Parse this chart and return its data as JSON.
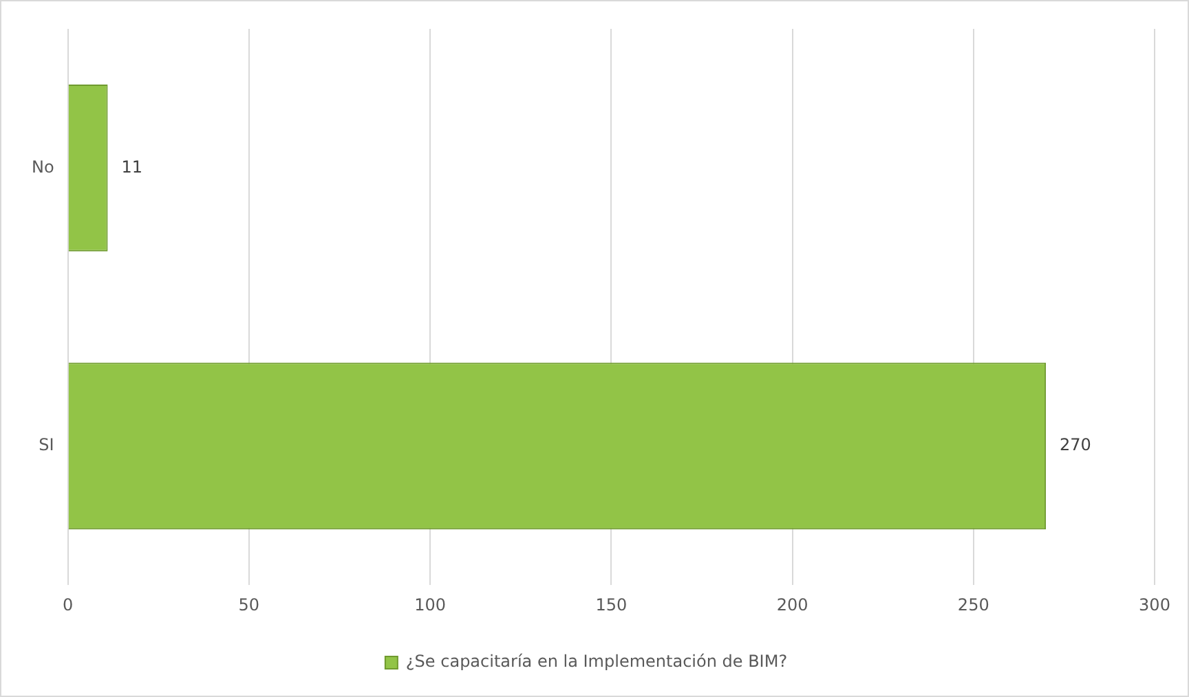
{
  "chart_data": {
    "type": "bar",
    "orientation": "horizontal",
    "categories": [
      "No",
      "SI"
    ],
    "series": [
      {
        "name": "¿Se capacitaría en la Implementación de BIM?",
        "color": "#92c447",
        "values": [
          11,
          270
        ]
      }
    ],
    "xlim": [
      0,
      300
    ],
    "xticks": [
      0,
      50,
      100,
      150,
      200,
      250,
      300
    ],
    "grid": "x",
    "legend": "bottom",
    "data_labels": true
  }
}
